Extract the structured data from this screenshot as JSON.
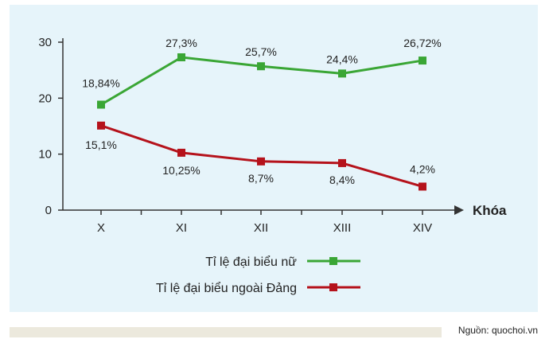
{
  "chart_data": {
    "type": "line",
    "categories": [
      "X",
      "XI",
      "XII",
      "XIII",
      "XIV"
    ],
    "xlabel": "Khóa",
    "ylabel": "",
    "ylim": [
      0,
      30
    ],
    "yticks": [
      "0",
      "10",
      "20",
      "30"
    ],
    "legend_position": "bottom-center",
    "series": [
      {
        "name": "Tỉ lệ đại biểu nữ",
        "color": "#3aa635",
        "values": [
          18.84,
          27.3,
          25.7,
          24.4,
          26.72
        ],
        "labels": [
          "18,84%",
          "27,3%",
          "25,7%",
          "24,4%",
          "26,72%"
        ]
      },
      {
        "name": "Tỉ lệ đại biểu ngoài Đảng",
        "color": "#b5121b",
        "values": [
          15.1,
          10.25,
          8.7,
          8.4,
          4.2
        ],
        "labels": [
          "15,1%",
          "10,25%",
          "8,7%",
          "8,4%",
          "4,2%"
        ]
      }
    ]
  },
  "source": "Nguồn: quochoi.vn"
}
